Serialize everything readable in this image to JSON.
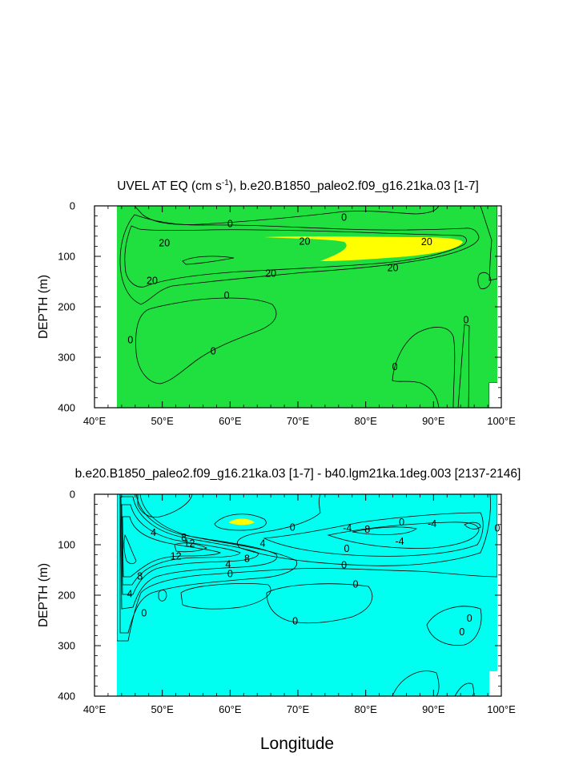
{
  "figure": {
    "xlabel": "Longitude",
    "colors": {
      "strong_neg": "#0a3cf0",
      "mid_neg": "#2f8cf5",
      "neg": "#14c8ff",
      "weak_neg": "#00fff0",
      "zero_band": "#20e040",
      "pos_weak": "#8cf000",
      "pos": "#ffff00",
      "pos_mid": "#ffd020",
      "pos_high": "#f5a000",
      "pos_strong": "#f06000",
      "pos_max": "#e01e00",
      "missing": "#ffffff"
    }
  },
  "chart_data": [
    {
      "type": "contour",
      "title": "UVEL AT EQ (cm s-1), b.e20.B1850_paleo2.f09_g16.21ka.03 [1-7]",
      "title_main": "UVEL AT EQ (cm s",
      "title_sup": "-1",
      "title_rest": "), b.e20.B1850_paleo2.f09_g16.21ka.03 [1-7]",
      "xlabel": "",
      "ylabel": "DEPTH (m)",
      "x_ticks": [
        "40°E",
        "50°E",
        "60°E",
        "70°E",
        "80°E",
        "90°E",
        "100°E"
      ],
      "y_ticks": [
        "0",
        "100",
        "200",
        "300",
        "400"
      ],
      "xlim": [
        40,
        100
      ],
      "ylim": [
        400,
        0
      ],
      "contour_labels": [
        {
          "text": "0",
          "x": 60,
          "y": 35
        },
        {
          "text": "0",
          "x": 76.8,
          "y": 22
        },
        {
          "text": "20",
          "x": 50.3,
          "y": 73
        },
        {
          "text": "20",
          "x": 71,
          "y": 70
        },
        {
          "text": "20",
          "x": 89,
          "y": 71
        },
        {
          "text": "20",
          "x": 48.5,
          "y": 148
        },
        {
          "text": "20",
          "x": 66,
          "y": 133
        },
        {
          "text": "20",
          "x": 84,
          "y": 122
        },
        {
          "text": "0",
          "x": 59.5,
          "y": 177
        },
        {
          "text": "0",
          "x": 45.3,
          "y": 265
        },
        {
          "text": "0",
          "x": 57.5,
          "y": 287
        },
        {
          "text": "0",
          "x": 84.3,
          "y": 318
        },
        {
          "text": "0",
          "x": 94.8,
          "y": 225
        }
      ]
    },
    {
      "type": "contour",
      "title": "b.e20.B1850_paleo2.f09_g16.21ka.03 [1-7] - b40.lgm21ka.1deg.003 [2137-2146]",
      "xlabel": "Longitude",
      "ylabel": "DEPTH (m)",
      "x_ticks": [
        "40°E",
        "50°E",
        "60°E",
        "70°E",
        "80°E",
        "90°E",
        "100°E"
      ],
      "y_ticks": [
        "0",
        "100",
        "200",
        "300",
        "400"
      ],
      "xlim": [
        40,
        100
      ],
      "ylim": [
        400,
        0
      ],
      "contour_labels": [
        {
          "text": "4",
          "x": 48.7,
          "y": 75
        },
        {
          "text": "8",
          "x": 53.2,
          "y": 85
        },
        {
          "text": "12",
          "x": 54,
          "y": 97
        },
        {
          "text": "12",
          "x": 52,
          "y": 122
        },
        {
          "text": "4",
          "x": 64.8,
          "y": 97
        },
        {
          "text": "8",
          "x": 62.5,
          "y": 127
        },
        {
          "text": "4",
          "x": 59.7,
          "y": 138
        },
        {
          "text": "0",
          "x": 60,
          "y": 157
        },
        {
          "text": "8",
          "x": 46.7,
          "y": 162
        },
        {
          "text": "4",
          "x": 45.2,
          "y": 197
        },
        {
          "text": "0",
          "x": 47.3,
          "y": 235
        },
        {
          "text": "0",
          "x": 69.2,
          "y": 65
        },
        {
          "text": "-4",
          "x": 77.3,
          "y": 67
        },
        {
          "text": "-8",
          "x": 80,
          "y": 69
        },
        {
          "text": "0",
          "x": 85.3,
          "y": 55
        },
        {
          "text": "-4",
          "x": 89.8,
          "y": 58
        },
        {
          "text": "-4",
          "x": 85,
          "y": 93
        },
        {
          "text": "0",
          "x": 77.2,
          "y": 107
        },
        {
          "text": "0",
          "x": 76.8,
          "y": 140
        },
        {
          "text": "0",
          "x": 78.5,
          "y": 178
        },
        {
          "text": "0",
          "x": 69.6,
          "y": 251
        },
        {
          "text": "0",
          "x": 95.3,
          "y": 245
        },
        {
          "text": "0",
          "x": 94.2,
          "y": 272
        },
        {
          "text": "0",
          "x": 99.4,
          "y": 67
        }
      ]
    }
  ]
}
